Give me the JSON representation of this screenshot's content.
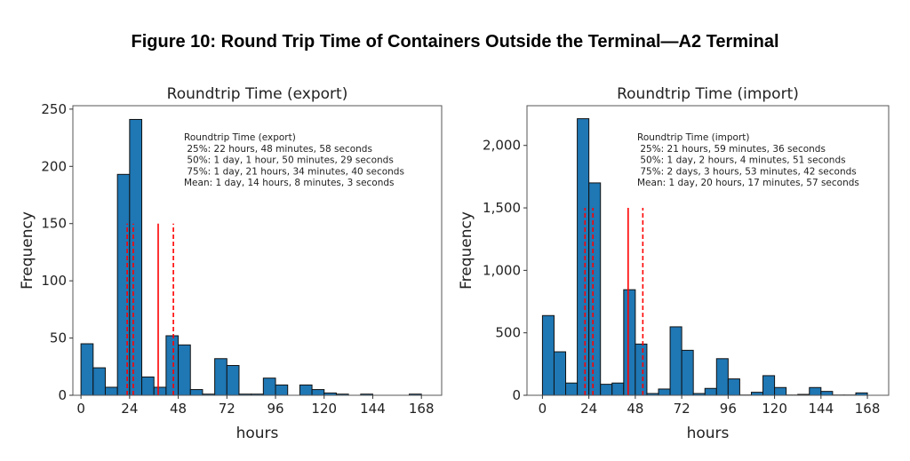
{
  "figure_title": "Figure 10: Round Trip Time of Containers Outside the Terminal—A2 Terminal",
  "chart_data": [
    {
      "type": "bar",
      "title": "Roundtrip Time (export)",
      "xlabel": "hours",
      "ylabel": "Frequency",
      "bin_width_hours": 6,
      "bin_start_hours": 0,
      "values": [
        45,
        24,
        7,
        193,
        241,
        16,
        7,
        52,
        44,
        5,
        1,
        32,
        26,
        1,
        1,
        15,
        9,
        0,
        9,
        5,
        2,
        1,
        0,
        1,
        0,
        0,
        0,
        1
      ],
      "xlim": [
        -4,
        178
      ],
      "ylim": [
        0,
        253
      ],
      "xticks": [
        "0",
        "24",
        "48",
        "72",
        "96",
        "120",
        "144",
        "168"
      ],
      "xtick_values": [
        0,
        24,
        48,
        72,
        96,
        120,
        144,
        168
      ],
      "yticks": [
        "0",
        "50",
        "100",
        "150",
        "200",
        "250"
      ],
      "ytick_values": [
        0,
        50,
        100,
        150,
        200,
        250
      ],
      "vlines": [
        {
          "x": 22.8,
          "height": 150,
          "style": "dashed",
          "stat": "25%"
        },
        {
          "x": 25.8,
          "height": 150,
          "style": "dashed",
          "stat": "50%"
        },
        {
          "x": 45.6,
          "height": 150,
          "style": "dashed",
          "stat": "75%"
        },
        {
          "x": 38.1,
          "height": 150,
          "style": "solid",
          "stat": "Mean"
        }
      ],
      "annotation": [
        "Roundtrip Time (export)",
        " 25%: 22 hours, 48 minutes, 58 seconds",
        " 50%: 1 day, 1 hour, 50 minutes, 29 seconds",
        " 75%: 1 day, 21 hours, 34 minutes, 40 seconds",
        "Mean: 1 day, 14 hours, 8 minutes, 3 seconds"
      ],
      "bar_color": "#1f77b4",
      "line_color": "#ff0000"
    },
    {
      "type": "bar",
      "title": "Roundtrip Time (import)",
      "xlabel": "hours",
      "ylabel": "Frequency",
      "bin_width_hours": 6,
      "bin_start_hours": 0,
      "values": [
        638,
        348,
        98,
        2214,
        1700,
        88,
        98,
        845,
        410,
        14,
        50,
        548,
        360,
        14,
        55,
        293,
        131,
        2,
        24,
        157,
        62,
        2,
        7,
        62,
        31,
        2,
        2,
        19
      ],
      "xlim": [
        -8,
        179
      ],
      "ylim": [
        0,
        2318
      ],
      "xticks": [
        "0",
        "24",
        "48",
        "72",
        "96",
        "120",
        "144",
        "168"
      ],
      "xtick_values": [
        0,
        24,
        48,
        72,
        96,
        120,
        144,
        168
      ],
      "yticks": [
        "0",
        "500",
        "1,000",
        "1,500",
        "2,000"
      ],
      "ytick_values": [
        0,
        500,
        1000,
        1500,
        2000
      ],
      "vlines": [
        {
          "x": 22.0,
          "height": 1500,
          "style": "dashed",
          "stat": "25%"
        },
        {
          "x": 26.1,
          "height": 1500,
          "style": "dashed",
          "stat": "50%"
        },
        {
          "x": 51.9,
          "height": 1500,
          "style": "dashed",
          "stat": "75%"
        },
        {
          "x": 44.3,
          "height": 1500,
          "style": "solid",
          "stat": "Mean"
        }
      ],
      "annotation": [
        "Roundtrip Time (import)",
        " 25%: 21 hours, 59 minutes, 36 seconds",
        " 50%: 1 day, 2 hours, 4 minutes, 51 seconds",
        " 75%: 2 days, 3 hours, 53 minutes, 42 seconds",
        "Mean: 1 day, 20 hours, 17 minutes, 57 seconds"
      ],
      "bar_color": "#1f77b4",
      "line_color": "#ff0000"
    }
  ]
}
